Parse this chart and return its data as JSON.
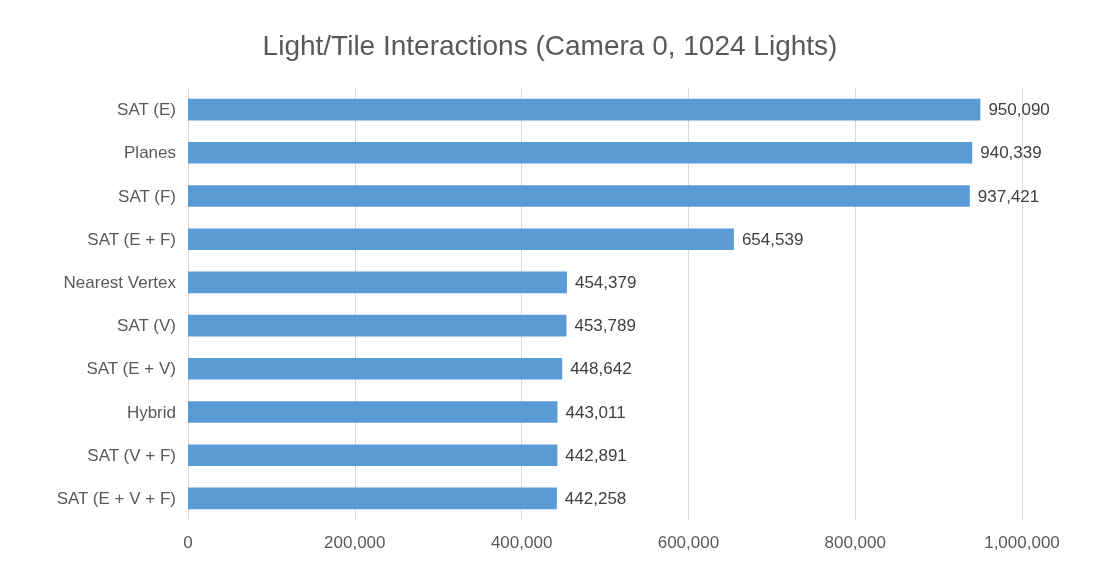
{
  "chart_data": {
    "type": "bar",
    "orientation": "horizontal",
    "title": "Light/Tile Interactions (Camera 0, 1024 Lights)",
    "categories": [
      "SAT (E)",
      "Planes",
      "SAT (F)",
      "SAT (E + F)",
      "Nearest Vertex",
      "SAT (V)",
      "SAT (E + V)",
      "Hybrid",
      "SAT (V + F)",
      "SAT (E + V + F)"
    ],
    "values": [
      950090,
      940339,
      937421,
      654539,
      454379,
      453789,
      448642,
      443011,
      442891,
      442258
    ],
    "value_labels": [
      "950,090",
      "940,339",
      "937,421",
      "654,539",
      "454,379",
      "453,789",
      "448,642",
      "443,011",
      "442,891",
      "442,258"
    ],
    "color": "#5b9bd5",
    "xlim": [
      0,
      1000000
    ],
    "xticks": [
      0,
      {
        "value": 200000,
        "label": "200,000"
      },
      {
        "value": 400000,
        "label": "400,000"
      },
      {
        "value": 600000,
        "label": "600,000"
      },
      {
        "value": 800000,
        "label": "800,000"
      },
      {
        "value": 1000000,
        "label": "1,000,000"
      }
    ],
    "grid": "x"
  }
}
